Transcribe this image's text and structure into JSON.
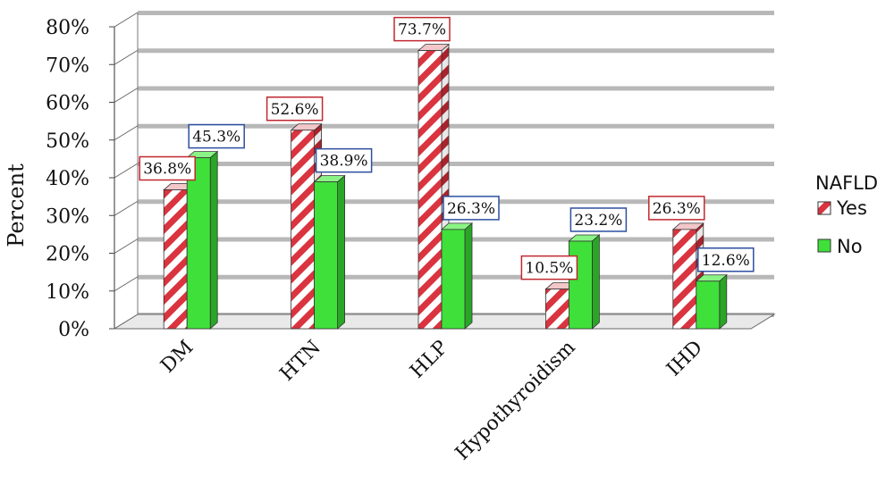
{
  "chart_data": {
    "type": "bar",
    "title": "",
    "xlabel": "",
    "ylabel": "Percent",
    "ylim": [
      0,
      80
    ],
    "yticks": [
      "0%",
      "10%",
      "20%",
      "30%",
      "40%",
      "50%",
      "60%",
      "70%",
      "80%"
    ],
    "categories": [
      "DM",
      "HTN",
      "HLP",
      "Hypothyroidism",
      "IHD"
    ],
    "legend_title": "NAFLD",
    "legend_position": "right",
    "series": [
      {
        "name": "Yes",
        "values": [
          36.8,
          52.6,
          73.7,
          10.5,
          26.3
        ],
        "labels": [
          "36.8%",
          "52.6%",
          "73.7%",
          "10.5%",
          "26.3%"
        ],
        "color": "#d9343f",
        "pattern": "red-white-diagonal-stripes"
      },
      {
        "name": "No",
        "values": [
          45.3,
          38.9,
          26.3,
          23.2,
          12.6
        ],
        "labels": [
          "45.3%",
          "38.9%",
          "26.3%",
          "23.2%",
          "12.6%"
        ],
        "color": "#3fe03a",
        "pattern": "solid"
      }
    ],
    "grid": true,
    "style": "3d-clustered-column"
  }
}
